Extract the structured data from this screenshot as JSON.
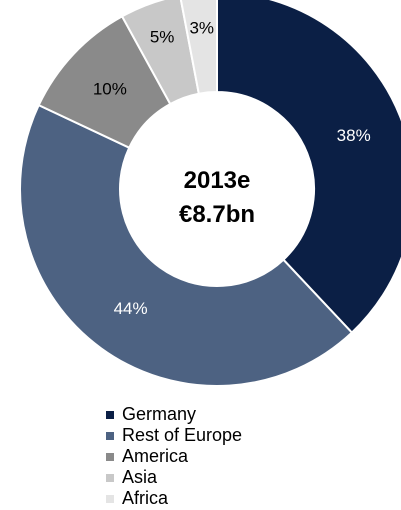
{
  "center": {
    "line1": "2013e",
    "line2": "€8.7bn"
  },
  "chart_data": {
    "type": "pie",
    "categories": [
      "Germany",
      "Rest of Europe",
      "America",
      "Asia",
      "Africa"
    ],
    "values": [
      38,
      44,
      10,
      5,
      3
    ],
    "labels": [
      "38%",
      "44%",
      "10%",
      "5%",
      "3%"
    ],
    "colors": [
      "#0b1f45",
      "#4d6282",
      "#8a8a8a",
      "#c8c8c8",
      "#e4e4e4"
    ],
    "label_colors": [
      "#ffffff",
      "#ffffff",
      "#000000",
      "#000000",
      "#000000"
    ],
    "donut": true,
    "legend_position": "bottom",
    "start_angle_deg": 0,
    "direction": "clockwise"
  },
  "legend": {
    "items": [
      {
        "label": "Germany",
        "color": "#0b1f45"
      },
      {
        "label": "Rest of Europe",
        "color": "#4d6282"
      },
      {
        "label": "America",
        "color": "#8a8a8a"
      },
      {
        "label": "Asia",
        "color": "#c8c8c8"
      },
      {
        "label": "Africa",
        "color": "#e4e4e4"
      }
    ]
  }
}
